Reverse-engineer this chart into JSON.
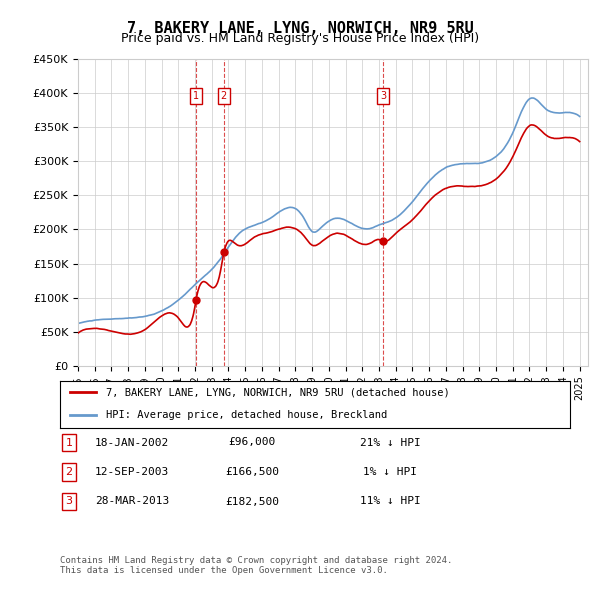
{
  "title": "7, BAKERY LANE, LYNG, NORWICH, NR9 5RU",
  "subtitle": "Price paid vs. HM Land Registry's House Price Index (HPI)",
  "ylabel": "",
  "ylim": [
    0,
    450000
  ],
  "yticks": [
    0,
    50000,
    100000,
    150000,
    200000,
    250000,
    300000,
    350000,
    400000,
    450000
  ],
  "ytick_labels": [
    "£0",
    "£50K",
    "£100K",
    "£150K",
    "£200K",
    "£250K",
    "£300K",
    "£350K",
    "£400K",
    "£450K"
  ],
  "background_color": "#ffffff",
  "grid_color": "#cccccc",
  "hpi_color": "#6699cc",
  "price_color": "#cc0000",
  "sale_marker_color": "#cc0000",
  "sale_label_color": "#cc0000",
  "sale_line_color": "#cc0000",
  "transactions": [
    {
      "label": "1",
      "date_num": 2002.04,
      "price": 96000
    },
    {
      "label": "2",
      "date_num": 2003.71,
      "price": 166500
    },
    {
      "label": "3",
      "date_num": 2013.24,
      "price": 182500
    }
  ],
  "legend_house_label": "7, BAKERY LANE, LYNG, NORWICH, NR9 5RU (detached house)",
  "legend_hpi_label": "HPI: Average price, detached house, Breckland",
  "table_rows": [
    {
      "num": "1",
      "date": "18-JAN-2002",
      "price": "£96,000",
      "hpi": "21% ↓ HPI"
    },
    {
      "num": "2",
      "date": "12-SEP-2003",
      "price": "£166,500",
      "hpi": "1% ↓ HPI"
    },
    {
      "num": "3",
      "date": "28-MAR-2013",
      "price": "£182,500",
      "hpi": "11% ↓ HPI"
    }
  ],
  "footer": "Contains HM Land Registry data © Crown copyright and database right 2024.\nThis data is licensed under the Open Government Licence v3.0.",
  "xmin": 1995,
  "xmax": 2025.5
}
